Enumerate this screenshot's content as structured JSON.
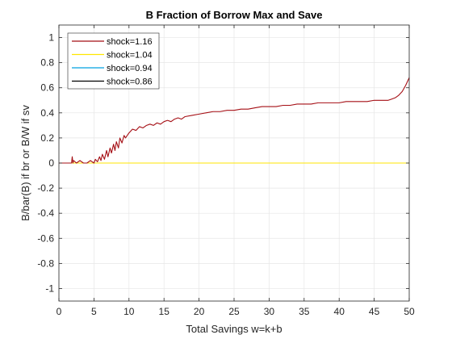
{
  "chart_data": {
    "type": "line",
    "title": "B Fraction of Borrow Max and Save",
    "xlabel": "Total Savings w=k+b",
    "ylabel": "B/bar(B) if br or B/W if sv",
    "xlim": [
      0,
      50
    ],
    "ylim": [
      -1.1,
      1.1
    ],
    "x_ticks": [
      0,
      5,
      10,
      15,
      20,
      25,
      30,
      35,
      40,
      45,
      50
    ],
    "y_ticks": [
      -1,
      -0.8,
      -0.6,
      -0.4,
      -0.2,
      0,
      0.2,
      0.4,
      0.6,
      0.8,
      1
    ],
    "x_tick_labels": [
      "0",
      "5",
      "10",
      "15",
      "20",
      "25",
      "30",
      "35",
      "40",
      "45",
      "50"
    ],
    "y_tick_labels": [
      "-1",
      "-0.8",
      "-0.6",
      "-0.4",
      "-0.2",
      "0",
      "0.2",
      "0.4",
      "0.6",
      "0.8",
      "1"
    ],
    "grid": true,
    "legend_position": "top-left",
    "series": [
      {
        "name": "shock=1.16",
        "color": "#a50f15",
        "x": [
          0,
          1.8,
          1.9,
          2.0,
          2.1,
          2.5,
          3.0,
          3.5,
          4.0,
          4.5,
          5.0,
          5.2,
          5.5,
          5.8,
          6.0,
          6.2,
          6.5,
          6.8,
          7.0,
          7.3,
          7.5,
          7.8,
          8.0,
          8.2,
          8.5,
          8.7,
          9.0,
          9.3,
          9.5,
          10.0,
          10.5,
          11.0,
          11.5,
          12.0,
          12.5,
          13.0,
          13.5,
          14.0,
          14.5,
          15.0,
          15.5,
          16.0,
          16.5,
          17.0,
          17.5,
          18.0,
          19.0,
          20.0,
          21.0,
          22.0,
          23.0,
          24.0,
          25.0,
          26.0,
          27.0,
          28.0,
          29.0,
          30.0,
          31.0,
          32.0,
          33.0,
          34.0,
          35.0,
          36.0,
          37.0,
          38.0,
          39.0,
          40.0,
          41.0,
          42.0,
          43.0,
          44.0,
          45.0,
          46.0,
          47.0,
          47.5,
          48.0,
          48.5,
          49.0,
          49.5,
          50.0
        ],
        "y": [
          0,
          0,
          0.05,
          0,
          0.02,
          0,
          0.02,
          0,
          0,
          0.02,
          0,
          0.03,
          0.01,
          0.05,
          0.02,
          0.07,
          0.03,
          0.1,
          0.05,
          0.12,
          0.08,
          0.15,
          0.1,
          0.17,
          0.12,
          0.2,
          0.16,
          0.22,
          0.2,
          0.24,
          0.27,
          0.26,
          0.29,
          0.28,
          0.3,
          0.31,
          0.3,
          0.32,
          0.31,
          0.33,
          0.34,
          0.33,
          0.35,
          0.36,
          0.35,
          0.37,
          0.38,
          0.39,
          0.4,
          0.41,
          0.41,
          0.42,
          0.42,
          0.43,
          0.43,
          0.44,
          0.45,
          0.45,
          0.45,
          0.46,
          0.46,
          0.47,
          0.47,
          0.47,
          0.48,
          0.48,
          0.48,
          0.48,
          0.49,
          0.49,
          0.49,
          0.49,
          0.5,
          0.5,
          0.5,
          0.51,
          0.52,
          0.54,
          0.57,
          0.62,
          0.68
        ]
      },
      {
        "name": "shock=1.04",
        "color": "#ffe600",
        "x": [
          0,
          50
        ],
        "y": [
          0,
          0
        ]
      },
      {
        "name": "shock=0.94",
        "color": "#00a0e0",
        "x": [
          0,
          50
        ],
        "y": [
          0,
          0
        ]
      },
      {
        "name": "shock=0.86",
        "color": "#000000",
        "x": [
          0,
          50
        ],
        "y": [
          0,
          0
        ]
      }
    ]
  }
}
